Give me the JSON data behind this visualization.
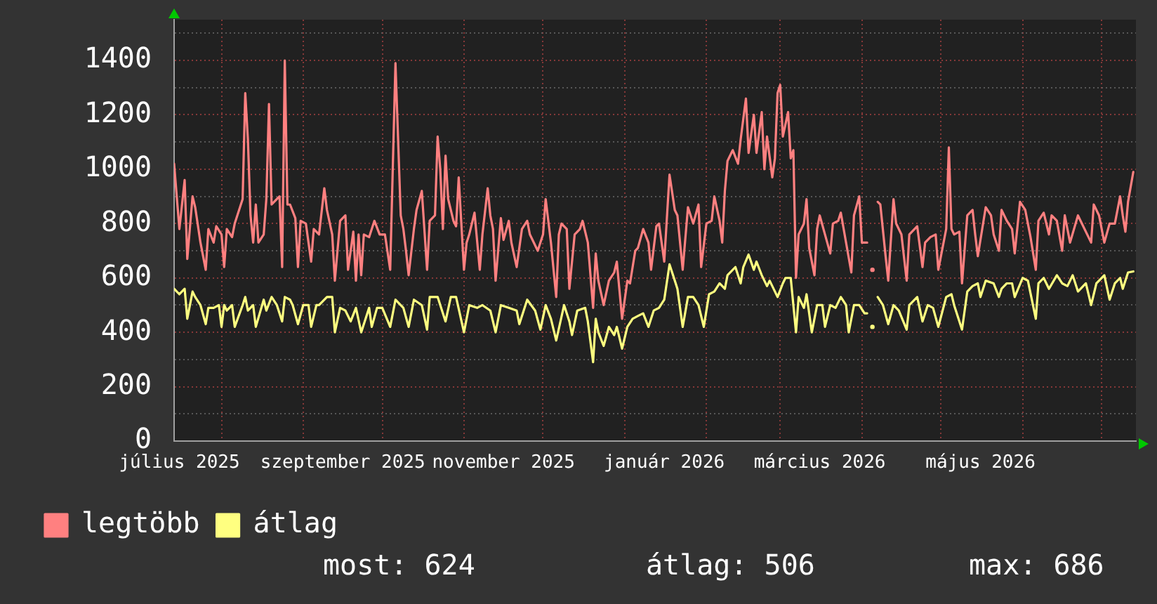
{
  "chart_data": {
    "type": "line",
    "xlim": [
      "2025-07-14",
      "2026-07-14"
    ],
    "xticks": [
      {
        "value": "2025-07-16",
        "label": "július 2025"
      },
      {
        "value": "2025-08-01",
        "label": null
      },
      {
        "value": "2025-09-01",
        "label": null
      },
      {
        "value": "2025-09-16",
        "label": "szeptember 2025"
      },
      {
        "value": "2025-10-01",
        "label": null
      },
      {
        "value": "2025-11-01",
        "label": null
      },
      {
        "value": "2025-11-16",
        "label": "november 2025"
      },
      {
        "value": "2025-12-01",
        "label": null
      },
      {
        "value": "2026-01-01",
        "label": null
      },
      {
        "value": "2026-01-16",
        "label": "január 2026"
      },
      {
        "value": "2026-02-01",
        "label": null
      },
      {
        "value": "2026-03-01",
        "label": null
      },
      {
        "value": "2026-03-16",
        "label": "március 2026"
      },
      {
        "value": "2026-04-01",
        "label": null
      },
      {
        "value": "2026-05-01",
        "label": null
      },
      {
        "value": "2026-05-16",
        "label": "május 2026"
      },
      {
        "value": "2026-06-01",
        "label": null
      },
      {
        "value": "2026-07-01",
        "label": null
      }
    ],
    "ylim": [
      0,
      1550
    ],
    "yticks": [
      0,
      {
        "value": 100,
        "label": null
      },
      200,
      {
        "value": 300,
        "label": null
      },
      400,
      {
        "value": 500,
        "label": null
      },
      600,
      {
        "value": 700,
        "label": null
      },
      800,
      {
        "value": 900,
        "label": null
      },
      1000,
      {
        "value": 1100,
        "label": null
      },
      1200,
      {
        "value": 1300,
        "label": null
      },
      1400,
      {
        "value": 1500,
        "label": null
      }
    ],
    "grid": true,
    "legend": "bottom left",
    "annotations": [
      "most: 624",
      "átlag: 506",
      "max: 686"
    ],
    "series": [
      {
        "name": "legtöbb",
        "color": "#ff8080",
        "x": [
          "2025-07-14",
          "2025-07-16",
          "2025-07-18",
          "2025-07-19",
          "2025-07-21",
          "2025-07-22",
          "2025-07-24",
          "2025-07-26",
          "2025-07-27",
          "2025-07-29",
          "2025-07-30",
          "2025-08-01",
          "2025-08-02",
          "2025-08-03",
          "2025-08-05",
          "2025-08-06",
          "2025-08-09",
          "2025-08-10",
          "2025-08-11",
          "2025-08-12",
          "2025-08-13",
          "2025-08-14",
          "2025-08-15",
          "2025-08-17",
          "2025-08-18",
          "2025-08-19",
          "2025-08-20",
          "2025-08-22",
          "2025-08-23",
          "2025-08-24",
          "2025-08-25",
          "2025-08-26",
          "2025-08-27",
          "2025-08-29",
          "2025-08-30",
          "2025-08-31",
          "2025-09-02",
          "2025-09-04",
          "2025-09-05",
          "2025-09-07",
          "2025-09-09",
          "2025-09-10",
          "2025-09-12",
          "2025-09-13",
          "2025-09-15",
          "2025-09-17",
          "2025-09-18",
          "2025-09-20",
          "2025-09-21",
          "2025-09-22",
          "2025-09-23",
          "2025-09-24",
          "2025-09-26",
          "2025-09-28",
          "2025-09-30",
          "2025-10-02",
          "2025-10-04",
          "2025-10-06",
          "2025-10-08",
          "2025-10-09",
          "2025-10-10",
          "2025-10-11",
          "2025-10-13",
          "2025-10-14",
          "2025-10-16",
          "2025-10-18",
          "2025-10-19",
          "2025-10-21",
          "2025-10-22",
          "2025-10-23",
          "2025-10-24",
          "2025-10-25",
          "2025-10-26",
          "2025-10-28",
          "2025-10-29",
          "2025-10-30",
          "2025-11-01",
          "2025-11-02",
          "2025-11-03",
          "2025-11-05",
          "2025-11-07",
          "2025-11-08",
          "2025-11-10",
          "2025-11-11",
          "2025-11-12",
          "2025-11-13",
          "2025-11-15",
          "2025-11-16",
          "2025-11-18",
          "2025-11-19",
          "2025-11-21",
          "2025-11-23",
          "2025-11-25",
          "2025-11-26",
          "2025-11-29",
          "2025-12-01",
          "2025-12-02",
          "2025-12-04",
          "2025-12-06",
          "2025-12-07",
          "2025-12-08",
          "2025-12-10",
          "2025-12-11",
          "2025-12-13",
          "2025-12-15",
          "2025-12-16",
          "2025-12-18",
          "2025-12-20",
          "2025-12-21",
          "2025-12-22",
          "2025-12-24",
          "2025-12-26",
          "2025-12-28",
          "2025-12-29",
          "2025-12-31",
          "2026-01-02",
          "2026-01-03",
          "2026-01-05",
          "2026-01-06",
          "2026-01-08",
          "2026-01-10",
          "2026-01-11",
          "2026-01-13",
          "2026-01-14",
          "2026-01-16",
          "2026-01-18",
          "2026-01-20",
          "2026-01-21",
          "2026-01-23",
          "2026-01-25",
          "2026-01-27",
          "2026-01-29",
          "2026-01-30",
          "2026-02-01",
          "2026-02-03",
          "2026-02-04",
          "2026-02-06",
          "2026-02-07",
          "2026-02-08",
          "2026-02-09",
          "2026-02-11",
          "2026-02-13",
          "2026-02-14",
          "2026-02-16",
          "2026-02-17",
          "2026-02-19",
          "2026-02-20",
          "2026-02-22",
          "2026-02-23",
          "2026-02-24",
          "2026-02-26",
          "2026-02-27",
          "2026-02-28",
          "2026-03-01",
          "2026-03-02",
          "2026-03-04",
          "2026-03-05",
          "2026-03-06",
          "2026-03-07",
          "2026-03-08",
          "2026-03-10",
          "2026-03-11",
          "2026-03-12",
          "2026-03-14",
          "2026-03-15",
          "2026-03-16",
          "2026-03-18",
          "2026-03-20",
          "2026-03-21",
          "2026-03-23",
          "2026-03-24",
          "2026-03-26",
          "2026-03-28",
          "2026-03-29",
          "2026-03-31",
          "2026-04-01",
          "2026-04-03",
          "2026-04-04",
          "2026-04-05",
          "2026-04-06",
          "2026-04-07",
          "2026-04-08",
          "2026-04-10",
          "2026-04-11",
          "2026-04-13",
          "2026-04-14",
          "2026-04-16",
          "2026-04-18",
          "2026-04-19",
          "2026-04-22",
          "2026-04-24",
          "2026-04-25",
          "2026-04-27",
          "2026-04-29",
          "2026-04-30",
          "2026-05-03",
          "2026-05-04",
          "2026-05-05",
          "2026-05-06",
          "2026-05-08",
          "2026-05-09",
          "2026-05-11",
          "2026-05-13",
          "2026-05-14",
          "2026-05-15",
          "2026-05-18",
          "2026-05-20",
          "2026-05-21",
          "2026-05-23",
          "2026-05-24",
          "2026-05-26",
          "2026-05-28",
          "2026-05-29",
          "2026-05-31",
          "2026-06-02",
          "2026-06-04",
          "2026-06-06",
          "2026-06-07",
          "2026-06-09",
          "2026-06-11",
          "2026-06-12",
          "2026-06-14",
          "2026-06-16",
          "2026-06-17",
          "2026-06-19",
          "2026-06-22",
          "2026-06-23",
          "2026-06-27",
          "2026-06-28",
          "2026-06-30",
          "2026-07-02",
          "2026-07-04",
          "2026-07-06",
          "2026-07-08",
          "2026-07-09",
          "2026-07-10",
          "2026-07-11",
          "2026-07-13"
        ],
        "values": [
          1020,
          780,
          960,
          670,
          900,
          860,
          730,
          630,
          780,
          730,
          790,
          760,
          640,
          780,
          750,
          800,
          890,
          1280,
          1110,
          830,
          730,
          870,
          730,
          760,
          890,
          1240,
          870,
          890,
          900,
          640,
          1400,
          870,
          870,
          820,
          640,
          810,
          800,
          660,
          780,
          760,
          930,
          850,
          760,
          590,
          810,
          830,
          630,
          770,
          590,
          760,
          610,
          760,
          750,
          810,
          760,
          760,
          630,
          1390,
          830,
          780,
          700,
          610,
          780,
          850,
          920,
          630,
          810,
          830,
          1120,
          1000,
          780,
          1050,
          890,
          810,
          790,
          970,
          630,
          730,
          760,
          840,
          630,
          760,
          930,
          830,
          780,
          590,
          820,
          740,
          810,
          730,
          640,
          780,
          810,
          760,
          700,
          760,
          890,
          730,
          530,
          760,
          800,
          780,
          560,
          760,
          780,
          810,
          730,
          490,
          690,
          590,
          500,
          590,
          620,
          660,
          450,
          590,
          580,
          700,
          710,
          780,
          730,
          630,
          790,
          800,
          660,
          980,
          850,
          830,
          630,
          860,
          800,
          870,
          640,
          800,
          810,
          900,
          810,
          730,
          920,
          1030,
          1070,
          1020,
          1110,
          1260,
          1060,
          1200,
          1060,
          1210,
          1000,
          1120,
          970,
          1040,
          1280,
          1310,
          1120,
          1210,
          1040,
          1070,
          600,
          760,
          800,
          890,
          710,
          610,
          780,
          830,
          760,
          690,
          800,
          810,
          840,
          730,
          620,
          830,
          900,
          730,
          730,
          null,
          630,
          null,
          880,
          870,
          680,
          590,
          890,
          800,
          760,
          590,
          760,
          790,
          640,
          730,
          750,
          760,
          630,
          780,
          1080,
          780,
          760,
          770,
          580,
          830,
          850,
          760,
          680,
          860,
          830,
          760,
          700,
          850,
          810,
          780,
          690,
          880,
          850,
          750,
          630,
          810,
          840,
          760,
          830,
          810,
          700,
          830,
          730,
          830,
          810,
          730,
          870,
          830,
          730,
          800,
          800,
          900,
          830,
          770,
          880,
          990
        ]
      },
      {
        "name": "átlag",
        "color": "#ffff80",
        "x": [
          "2025-07-14",
          "2025-07-16",
          "2025-07-18",
          "2025-07-19",
          "2025-07-21",
          "2025-07-22",
          "2025-07-24",
          "2025-07-26",
          "2025-07-27",
          "2025-07-29",
          "2025-07-31",
          "2025-08-01",
          "2025-08-02",
          "2025-08-03",
          "2025-08-05",
          "2025-08-06",
          "2025-08-09",
          "2025-08-10",
          "2025-08-11",
          "2025-08-13",
          "2025-08-14",
          "2025-08-17",
          "2025-08-18",
          "2025-08-20",
          "2025-08-22",
          "2025-08-24",
          "2025-08-25",
          "2025-08-27",
          "2025-08-28",
          "2025-08-30",
          "2025-09-01",
          "2025-09-03",
          "2025-09-04",
          "2025-09-06",
          "2025-09-07",
          "2025-09-10",
          "2025-09-12",
          "2025-09-13",
          "2025-09-15",
          "2025-09-17",
          "2025-09-19",
          "2025-09-21",
          "2025-09-23",
          "2025-09-26",
          "2025-09-27",
          "2025-09-29",
          "2025-10-01",
          "2025-10-04",
          "2025-10-06",
          "2025-10-09",
          "2025-10-11",
          "2025-10-13",
          "2025-10-16",
          "2025-10-18",
          "2025-10-19",
          "2025-10-22",
          "2025-10-25",
          "2025-10-27",
          "2025-10-29",
          "2025-11-01",
          "2025-11-03",
          "2025-11-06",
          "2025-11-08",
          "2025-11-11",
          "2025-11-13",
          "2025-11-15",
          "2025-11-18",
          "2025-11-21",
          "2025-11-22",
          "2025-11-25",
          "2025-11-28",
          "2025-11-30",
          "2025-12-02",
          "2025-12-04",
          "2025-12-06",
          "2025-12-09",
          "2025-12-11",
          "2025-12-12",
          "2025-12-14",
          "2025-12-17",
          "2025-12-18",
          "2025-12-20",
          "2025-12-21",
          "2025-12-22",
          "2025-12-24",
          "2025-12-26",
          "2025-12-28",
          "2025-12-29",
          "2025-12-31",
          "2026-01-02",
          "2026-01-04",
          "2026-01-06",
          "2026-01-08",
          "2026-01-10",
          "2026-01-12",
          "2026-01-14",
          "2026-01-16",
          "2026-01-18",
          "2026-01-20",
          "2026-01-21",
          "2026-01-23",
          "2026-01-25",
          "2026-01-27",
          "2026-01-29",
          "2026-01-31",
          "2026-02-02",
          "2026-02-04",
          "2026-02-06",
          "2026-02-08",
          "2026-02-09",
          "2026-02-12",
          "2026-02-14",
          "2026-02-15",
          "2026-02-17",
          "2026-02-19",
          "2026-02-20",
          "2026-02-22",
          "2026-02-24",
          "2026-02-25",
          "2026-02-28",
          "2026-03-02",
          "2026-03-03",
          "2026-03-05",
          "2026-03-07",
          "2026-03-08",
          "2026-03-10",
          "2026-03-11",
          "2026-03-13",
          "2026-03-15",
          "2026-03-17",
          "2026-03-18",
          "2026-03-20",
          "2026-03-22",
          "2026-03-24",
          "2026-03-26",
          "2026-03-27",
          "2026-03-29",
          "2026-03-31",
          "2026-04-02",
          "2026-04-03",
          "2026-04-04",
          "2026-04-05",
          "2026-04-06",
          "2026-04-07",
          "2026-04-09",
          "2026-04-11",
          "2026-04-13",
          "2026-04-15",
          "2026-04-18",
          "2026-04-19",
          "2026-04-22",
          "2026-04-24",
          "2026-04-26",
          "2026-04-28",
          "2026-04-30",
          "2026-05-03",
          "2026-05-05",
          "2026-05-06",
          "2026-05-09",
          "2026-05-11",
          "2026-05-13",
          "2026-05-15",
          "2026-05-16",
          "2026-05-18",
          "2026-05-21",
          "2026-05-23",
          "2026-05-24",
          "2026-05-26",
          "2026-05-28",
          "2026-05-29",
          "2026-06-01",
          "2026-06-03",
          "2026-06-06",
          "2026-06-07",
          "2026-06-09",
          "2026-06-11",
          "2026-06-14",
          "2026-06-16",
          "2026-06-18",
          "2026-06-20",
          "2026-06-22",
          "2026-06-25",
          "2026-06-27",
          "2026-06-29",
          "2026-06-30",
          "2026-07-02",
          "2026-07-04",
          "2026-07-06",
          "2026-07-08",
          "2026-07-09",
          "2026-07-11",
          "2026-07-13"
        ],
        "values": [
          560,
          540,
          560,
          450,
          550,
          530,
          500,
          430,
          490,
          490,
          500,
          420,
          500,
          480,
          500,
          420,
          500,
          530,
          480,
          500,
          420,
          520,
          480,
          530,
          500,
          440,
          530,
          520,
          500,
          430,
          500,
          500,
          420,
          500,
          500,
          530,
          530,
          400,
          490,
          480,
          440,
          490,
          400,
          490,
          420,
          490,
          490,
          420,
          520,
          490,
          420,
          520,
          500,
          410,
          530,
          530,
          440,
          530,
          530,
          400,
          500,
          490,
          500,
          480,
          400,
          500,
          490,
          480,
          430,
          520,
          480,
          410,
          500,
          450,
          370,
          500,
          440,
          390,
          480,
          490,
          440,
          290,
          450,
          400,
          350,
          420,
          390,
          420,
          340,
          420,
          450,
          460,
          470,
          420,
          480,
          490,
          520,
          650,
          590,
          560,
          420,
          530,
          530,
          500,
          420,
          540,
          550,
          580,
          560,
          610,
          640,
          580,
          640,
          686,
          630,
          660,
          610,
          570,
          590,
          530,
          580,
          600,
          600,
          400,
          530,
          490,
          540,
          400,
          500,
          500,
          420,
          500,
          490,
          530,
          500,
          400,
          500,
          500,
          470,
          470,
          null,
          420,
          null,
          530,
          500,
          430,
          500,
          480,
          410,
          500,
          530,
          440,
          500,
          490,
          420,
          530,
          540,
          500,
          410,
          550,
          570,
          580,
          530,
          590,
          580,
          530,
          560,
          580,
          580,
          530,
          600,
          590,
          450,
          580,
          600,
          560,
          610,
          580,
          570,
          610,
          550,
          580,
          500,
          580,
          590,
          610,
          520,
          580,
          600,
          560,
          620,
          624
        ]
      }
    ]
  }
}
